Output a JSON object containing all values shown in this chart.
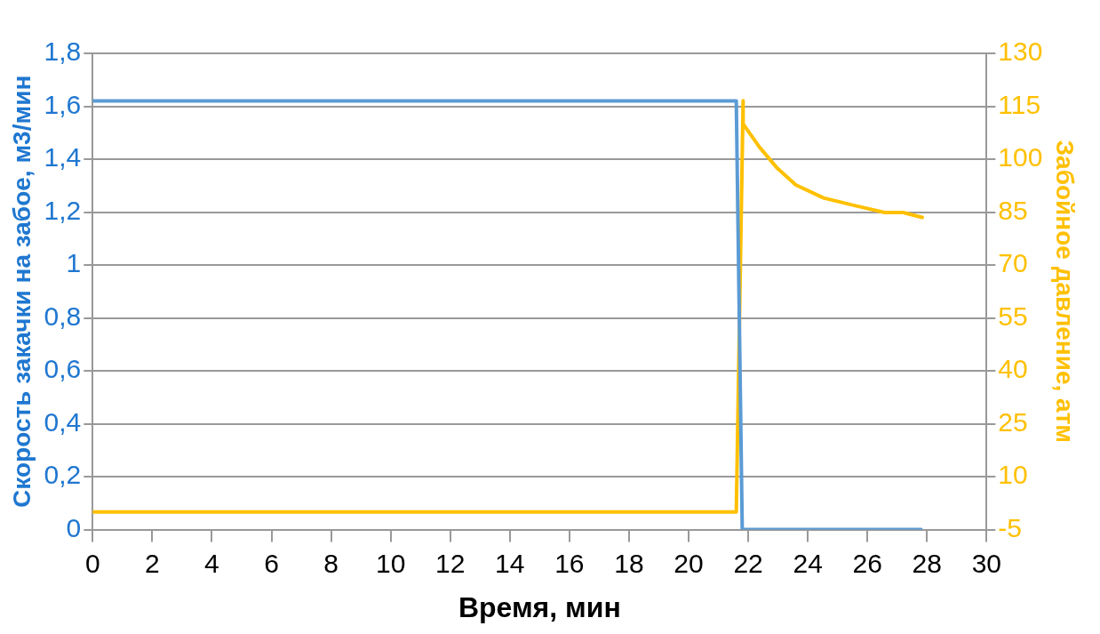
{
  "chart_data": {
    "type": "line",
    "xlabel": "Время, мин",
    "ylabel": "Скорость закачки на забое, м3/мин",
    "y2label": "Забойное давление, атм",
    "xlim": [
      0,
      30
    ],
    "xticks": [
      0,
      2,
      4,
      6,
      8,
      10,
      12,
      14,
      16,
      18,
      20,
      22,
      24,
      26,
      28,
      30
    ],
    "ylim": [
      0,
      1.8
    ],
    "yticks": [
      0,
      {
        "value": 0.2,
        "label": "0,2"
      },
      {
        "value": 0.4,
        "label": "0,4"
      },
      {
        "value": 0.6,
        "label": "0,6"
      },
      {
        "value": 0.8,
        "label": "0,8"
      },
      1,
      {
        "value": 1.2,
        "label": "1,2"
      },
      {
        "value": 1.4,
        "label": "1,4"
      },
      {
        "value": 1.6,
        "label": "1,6"
      },
      {
        "value": 1.8,
        "label": "1,8"
      }
    ],
    "y2lim": [
      -5,
      130
    ],
    "y2ticks": [
      -5,
      10,
      25,
      40,
      55,
      70,
      85,
      100,
      115,
      130
    ],
    "grid": "y",
    "legend": false,
    "marker": "none",
    "line_style": "solid",
    "series": [
      {
        "color": "#5b9bd5",
        "x": [
          0,
          21.6,
          21.8,
          27.8
        ],
        "values": [
          1.62,
          1.62,
          0,
          0
        ]
      },
      {
        "color": "#ffc000",
        "axis": "y2",
        "x": [
          0,
          21.6,
          21.83,
          21.83,
          22.37,
          22.98,
          23.6,
          24.53,
          25.6,
          26.58,
          27.2,
          27.84
        ],
        "values": [
          0,
          0,
          116.6,
          110,
          103.5,
          97.4,
          92.7,
          89,
          86.8,
          84.9,
          84.9,
          83.5
        ]
      }
    ]
  }
}
